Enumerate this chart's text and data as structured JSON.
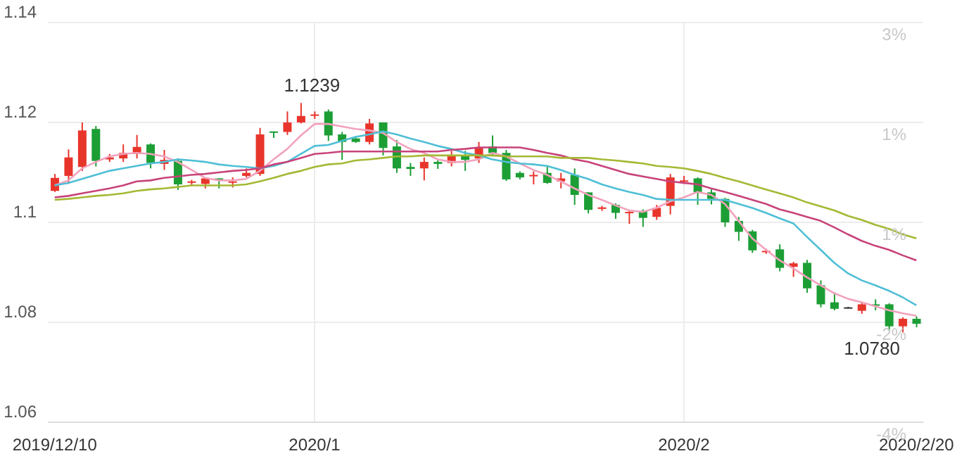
{
  "chart_data": {
    "type": "candlestick",
    "categories": [
      "2019/12/10",
      null,
      null,
      null,
      null,
      null,
      null,
      null,
      null,
      null,
      null,
      null,
      null,
      null,
      null,
      null,
      null,
      null,
      null,
      "2020/1",
      null,
      null,
      null,
      null,
      null,
      null,
      null,
      null,
      null,
      null,
      null,
      null,
      null,
      null,
      null,
      null,
      null,
      null,
      null,
      null,
      null,
      null,
      null,
      null,
      null,
      null,
      "2020/2",
      null,
      null,
      null,
      null,
      null,
      null,
      null,
      null,
      null,
      null,
      null,
      null,
      null,
      null,
      null,
      null,
      "2020/2/20"
    ],
    "ohlc": [
      [
        1.1063,
        1.1097,
        1.1061,
        1.1089
      ],
      [
        1.1093,
        1.1146,
        1.1077,
        1.113
      ],
      [
        1.1111,
        1.12,
        1.1103,
        1.1184
      ],
      [
        1.1187,
        1.1193,
        1.1112,
        1.1123
      ],
      [
        1.1126,
        1.1137,
        1.1121,
        1.113
      ],
      [
        1.1128,
        1.1156,
        1.1121,
        1.1139
      ],
      [
        1.1137,
        1.1175,
        1.1128,
        1.1151
      ],
      [
        1.1156,
        1.1158,
        1.1108,
        1.1119
      ],
      [
        1.1117,
        1.1145,
        1.1105,
        1.1125
      ],
      [
        1.1123,
        1.1128,
        1.1065,
        1.1076
      ],
      [
        1.108,
        1.1085,
        1.1075,
        1.1082
      ],
      [
        1.1077,
        1.109,
        1.1068,
        1.1088
      ],
      [
        1.1088,
        1.1088,
        1.1068,
        1.1087
      ],
      [
        1.108,
        1.109,
        1.107,
        1.1082
      ],
      [
        1.1093,
        1.1108,
        1.109,
        1.1099
      ],
      [
        1.1097,
        1.1189,
        1.1093,
        1.1176
      ],
      [
        1.1182,
        1.1182,
        1.1169,
        1.1181
      ],
      [
        1.1181,
        1.1222,
        1.1175,
        1.12
      ],
      [
        1.12,
        1.1239,
        1.1198,
        1.1213
      ],
      [
        1.1214,
        1.1222,
        1.1207,
        1.1216
      ],
      [
        1.1222,
        1.1226,
        1.1163,
        1.1174
      ],
      [
        1.1176,
        1.1181,
        1.1125,
        1.1161
      ],
      [
        1.1168,
        1.117,
        1.1159,
        1.1161
      ],
      [
        1.1161,
        1.1207,
        1.1156,
        1.1198
      ],
      [
        1.12,
        1.12,
        1.1134,
        1.1149
      ],
      [
        1.1152,
        1.1165,
        1.1099,
        1.1108
      ],
      [
        1.1111,
        1.1119,
        1.1093,
        1.1107
      ],
      [
        1.1108,
        1.113,
        1.1084,
        1.1121
      ],
      [
        1.1121,
        1.1124,
        1.1107,
        1.1117
      ],
      [
        1.1119,
        1.1143,
        1.1112,
        1.1134
      ],
      [
        1.1134,
        1.1143,
        1.1103,
        1.1125
      ],
      [
        1.1128,
        1.1161,
        1.1119,
        1.1149
      ],
      [
        1.1152,
        1.1174,
        1.1132,
        1.1139
      ],
      [
        1.1139,
        1.1145,
        1.1083,
        1.1086
      ],
      [
        1.1099,
        1.1102,
        1.1086,
        1.109
      ],
      [
        1.1093,
        1.1102,
        1.1076,
        1.1095
      ],
      [
        1.1099,
        1.1114,
        1.1077,
        1.1079
      ],
      [
        1.1082,
        1.1099,
        1.1068,
        1.1088
      ],
      [
        1.1095,
        1.1108,
        1.1035,
        1.1055
      ],
      [
        1.106,
        1.106,
        1.1018,
        1.1025
      ],
      [
        1.1027,
        1.1033,
        1.1023,
        1.103
      ],
      [
        1.1035,
        1.1038,
        1.1007,
        1.1019
      ],
      [
        1.1019,
        1.1025,
        1.0997,
        1.1021
      ],
      [
        1.1023,
        1.1026,
        1.0991,
        1.1009
      ],
      [
        1.1011,
        1.1035,
        1.1005,
        1.1029
      ],
      [
        1.1033,
        1.1097,
        1.1016,
        1.109
      ],
      [
        1.1083,
        1.1093,
        1.1077,
        1.1084
      ],
      [
        1.1088,
        1.109,
        1.1035,
        1.106
      ],
      [
        1.106,
        1.1066,
        1.1036,
        1.1047
      ],
      [
        1.1047,
        1.1049,
        1.0991,
        1.1
      ],
      [
        1.1003,
        1.1011,
        1.0963,
        1.0981
      ],
      [
        1.0982,
        1.0985,
        1.0939,
        1.0944
      ],
      [
        1.0941,
        1.0947,
        1.0937,
        1.0943
      ],
      [
        1.0946,
        1.0956,
        1.0902,
        1.0909
      ],
      [
        1.0911,
        1.0921,
        1.0891,
        1.0918
      ],
      [
        1.0919,
        1.0925,
        1.0859,
        1.0868
      ],
      [
        1.0874,
        1.0884,
        1.083,
        1.0836
      ],
      [
        1.084,
        1.086,
        1.0824,
        1.0827
      ],
      [
        1.083,
        1.0831,
        1.0829,
        1.083
      ],
      [
        1.0823,
        1.084,
        1.0817,
        1.0836
      ],
      [
        1.0836,
        1.0846,
        1.0824,
        1.0834
      ],
      [
        1.0836,
        1.0838,
        1.0783,
        1.0792
      ],
      [
        1.0792,
        1.081,
        1.078,
        1.0807
      ],
      [
        1.0807,
        1.0812,
        1.079,
        1.0797
      ]
    ],
    "colors": [
      "#e8352c",
      "#e8352c",
      "#e8352c",
      "#1c9e35",
      "#e8352c",
      "#e8352c",
      "#e8352c",
      "#1c9e35",
      "#e8352c",
      "#1c9e35",
      "#e8352c",
      "#e8352c",
      "#1c9e35",
      "#e8352c",
      "#e8352c",
      "#e8352c",
      "#1c9e35",
      "#e8352c",
      "#e8352c",
      "#e8352c",
      "#1c9e35",
      "#1c9e35",
      "#1c9e35",
      "#e8352c",
      "#1c9e35",
      "#1c9e35",
      "#1c9e35",
      "#e8352c",
      "#1c9e35",
      "#e8352c",
      "#1c9e35",
      "#e8352c",
      "#1c9e35",
      "#1c9e35",
      "#1c9e35",
      "#e8352c",
      "#1c9e35",
      "#e8352c",
      "#1c9e35",
      "#1c9e35",
      "#e8352c",
      "#1c9e35",
      "#e8352c",
      "#1c9e35",
      "#e8352c",
      "#e8352c",
      "#e8352c",
      "#1c9e35",
      "#1c9e35",
      "#1c9e35",
      "#1c9e35",
      "#1c9e35",
      "#e8352c",
      "#1c9e35",
      "#e8352c",
      "#1c9e35",
      "#1c9e35",
      "#1c9e35",
      "#333333",
      "#e8352c",
      "#1c9e35",
      "#1c9e35",
      "#e8352c",
      "#1c9e35"
    ],
    "series": [
      {
        "type": "line",
        "color": "#f2a2bd",
        "values": [
          1.1074,
          1.1084,
          1.1108,
          1.1121,
          1.1132,
          1.1137,
          1.1139,
          1.1137,
          1.1132,
          1.1121,
          1.1105,
          1.1089,
          1.1084,
          1.1084,
          1.1087,
          1.1103,
          1.1126,
          1.1147,
          1.1174,
          1.1197,
          1.1197,
          1.1192,
          1.1187,
          1.1184,
          1.1179,
          1.1161,
          1.1147,
          1.1139,
          1.1126,
          1.1121,
          1.1121,
          1.1126,
          1.1139,
          1.1132,
          1.1118,
          1.1105,
          1.1095,
          1.1082,
          1.1068,
          1.1055,
          1.1045,
          1.1034,
          1.1024,
          1.1021,
          1.1029,
          1.1042,
          1.105,
          1.1061,
          1.1055,
          1.1037,
          1.1003,
          1.0968,
          1.0945,
          1.0924,
          1.0908,
          1.089,
          1.0874,
          1.0858,
          1.0847,
          1.084,
          1.0832,
          1.0824,
          1.0818,
          1.0813
        ]
      },
      {
        "type": "line",
        "color": "#4fbfd6",
        "values": [
          1.1074,
          1.1079,
          1.1087,
          1.1095,
          1.1103,
          1.1108,
          1.1113,
          1.1118,
          1.1121,
          1.1126,
          1.1124,
          1.1121,
          1.1116,
          1.1113,
          1.1111,
          1.1108,
          1.1113,
          1.1121,
          1.1137,
          1.1153,
          1.1155,
          1.1163,
          1.1171,
          1.1176,
          1.1182,
          1.1176,
          1.1168,
          1.1161,
          1.1153,
          1.1147,
          1.1139,
          1.1134,
          1.1126,
          1.1121,
          1.1118,
          1.1116,
          1.1113,
          1.1105,
          1.1095,
          1.1087,
          1.1076,
          1.1068,
          1.1061,
          1.1055,
          1.1047,
          1.1045,
          1.1045,
          1.1045,
          1.1045,
          1.1045,
          1.1037,
          1.1029,
          1.1019,
          1.1008,
          1.0998,
          1.0971,
          1.0945,
          1.0919,
          1.0898,
          1.0884,
          1.0874,
          1.0863,
          1.085,
          1.0834
        ]
      },
      {
        "type": "line",
        "color": "#c8437a",
        "values": [
          1.105,
          1.1053,
          1.1058,
          1.1063,
          1.1068,
          1.1074,
          1.1082,
          1.1084,
          1.1089,
          1.1092,
          1.1095,
          1.1097,
          1.11,
          1.1103,
          1.1105,
          1.1108,
          1.1116,
          1.1121,
          1.1129,
          1.1137,
          1.1139,
          1.1142,
          1.1142,
          1.1142,
          1.1142,
          1.1142,
          1.1142,
          1.1142,
          1.1142,
          1.1145,
          1.1147,
          1.115,
          1.115,
          1.115,
          1.115,
          1.1145,
          1.1139,
          1.1134,
          1.1126,
          1.1121,
          1.1113,
          1.1105,
          1.1097,
          1.1092,
          1.1087,
          1.1082,
          1.1079,
          1.1076,
          1.1068,
          1.1061,
          1.1053,
          1.1045,
          1.1037,
          1.1026,
          1.1019,
          1.1011,
          1.1003,
          1.099,
          1.0976,
          1.0963,
          1.0953,
          1.0945,
          1.0934,
          1.0924
        ]
      },
      {
        "type": "line",
        "color": "#a6b834",
        "values": [
          1.1045,
          1.1047,
          1.105,
          1.1053,
          1.1055,
          1.1058,
          1.1063,
          1.1066,
          1.1068,
          1.1071,
          1.1074,
          1.1074,
          1.1074,
          1.1074,
          1.1076,
          1.1082,
          1.1089,
          1.1097,
          1.1103,
          1.1111,
          1.1116,
          1.1118,
          1.1124,
          1.1126,
          1.1129,
          1.1132,
          1.1132,
          1.1134,
          1.1134,
          1.1134,
          1.1134,
          1.1134,
          1.1134,
          1.1132,
          1.1132,
          1.1132,
          1.1132,
          1.1129,
          1.1129,
          1.1129,
          1.1126,
          1.1124,
          1.1121,
          1.1118,
          1.1113,
          1.1111,
          1.1108,
          1.1103,
          1.1097,
          1.1089,
          1.1082,
          1.1074,
          1.1066,
          1.1058,
          1.105,
          1.104,
          1.1032,
          1.1024,
          1.1013,
          1.1005,
          1.0995,
          1.0987,
          1.0976,
          1.0968
        ]
      }
    ],
    "ylim": [
      1.06,
      1.14
    ],
    "yticks": [
      1.06,
      1.08,
      1.1,
      1.12,
      1.14
    ],
    "y2lim": [
      -4.1,
      3.1
    ],
    "y2ticks": [
      {
        "value": 3.1,
        "label": "3%"
      },
      {
        "value": 1.3,
        "label": "1%"
      },
      {
        "value": -0.5,
        "label": "1%"
      },
      {
        "value": -2.3,
        "label": "-2%"
      },
      {
        "value": -4.1,
        "label": "-4%"
      }
    ],
    "grid": true,
    "annotations": [
      "1.1239",
      "1.0780"
    ]
  }
}
